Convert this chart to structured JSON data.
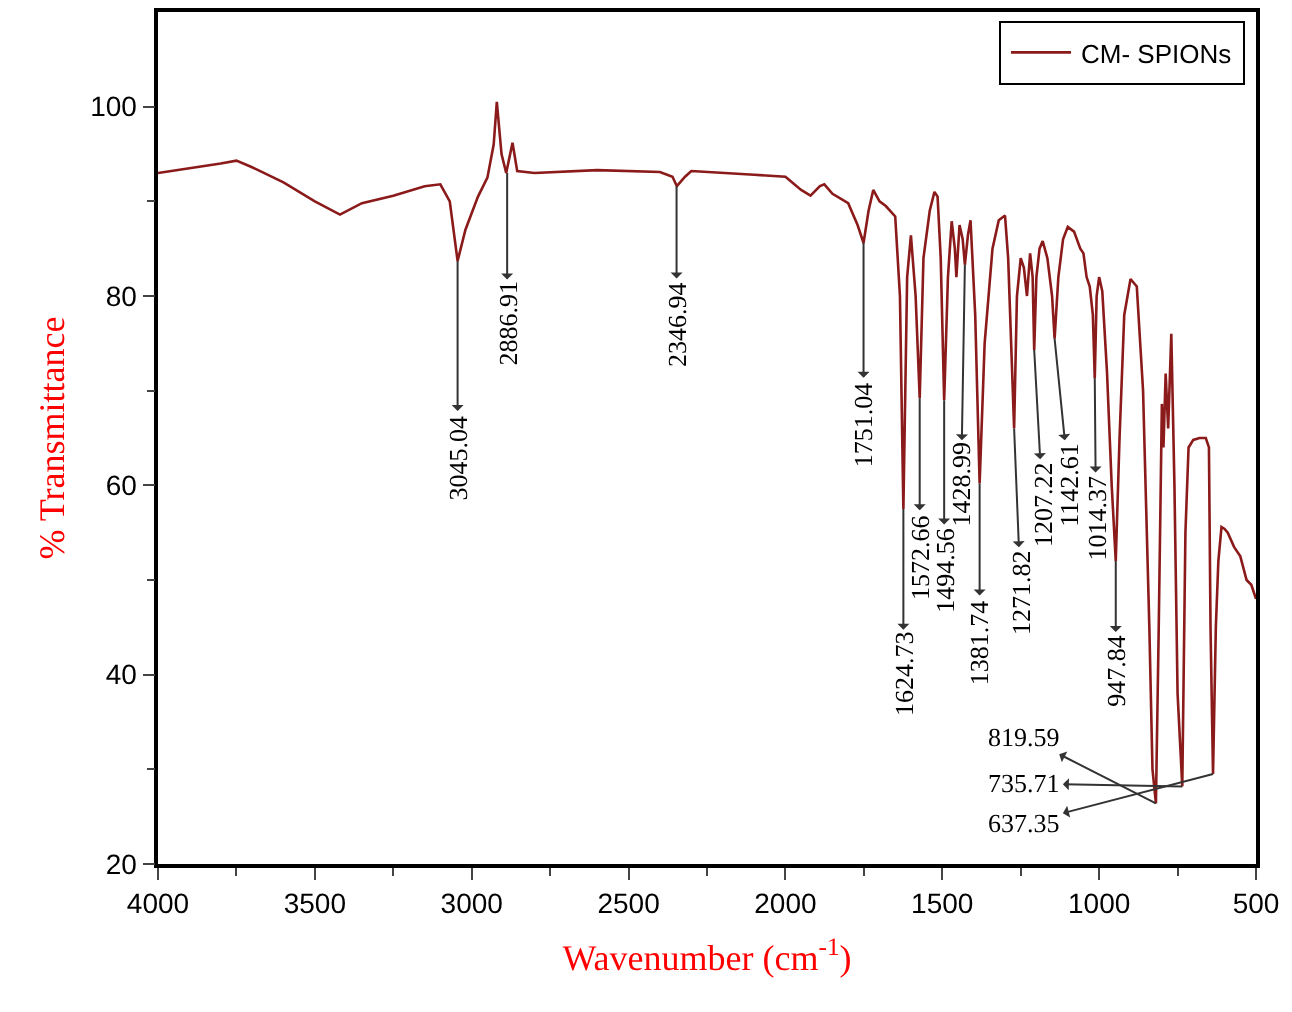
{
  "chart_data": {
    "type": "line",
    "xlabel": "Wavenumber (cm$^{-1}$)",
    "ylabel": "% Transmittance",
    "xlim": [
      4000,
      500
    ],
    "ylim": [
      20,
      110
    ],
    "xticks": [
      4000,
      3500,
      3000,
      2500,
      2000,
      1500,
      1000,
      500
    ],
    "yticks": [
      20,
      40,
      60,
      80,
      100
    ],
    "legend": "top right",
    "marker": "none",
    "line_style": "solid",
    "x": [
      4000,
      3900,
      3800,
      3750,
      3700,
      3600,
      3500,
      3420,
      3350,
      3250,
      3150,
      3100,
      3070,
      3045,
      3020,
      2980,
      2950,
      2930,
      2920,
      2905,
      2890,
      2870,
      2855,
      2800,
      2600,
      2400,
      2360,
      2346,
      2320,
      2300,
      2100,
      2000,
      1950,
      1920,
      1890,
      1876,
      1850,
      1800,
      1770,
      1751,
      1735,
      1720,
      1700,
      1680,
      1650,
      1635,
      1624,
      1612,
      1600,
      1585,
      1572,
      1560,
      1540,
      1525,
      1515,
      1505,
      1494,
      1482,
      1470,
      1460,
      1455,
      1445,
      1435,
      1428,
      1418,
      1410,
      1395,
      1381,
      1365,
      1340,
      1320,
      1300,
      1290,
      1271,
      1262,
      1250,
      1240,
      1230,
      1220,
      1212,
      1207,
      1200,
      1190,
      1180,
      1165,
      1150,
      1142,
      1130,
      1115,
      1100,
      1080,
      1060,
      1050,
      1040,
      1030,
      1020,
      1014,
      1008,
      1000,
      990,
      975,
      960,
      947,
      935,
      920,
      900,
      880,
      860,
      840,
      830,
      819,
      810,
      800,
      795,
      788,
      780,
      770,
      760,
      750,
      735,
      725,
      715,
      700,
      680,
      660,
      650,
      645,
      637,
      628,
      620,
      610,
      600,
      590,
      570,
      550,
      530,
      515,
      500
    ],
    "series": [
      {
        "name": "CM- SPIONs",
        "color": "#8b1a1a",
        "values": [
          93.0,
          93.5,
          94.0,
          94.3,
          93.6,
          92.0,
          90.0,
          88.6,
          89.8,
          90.6,
          91.6,
          91.8,
          90.0,
          83.7,
          87.0,
          90.5,
          92.5,
          96.0,
          100.5,
          95.0,
          93.0,
          96.2,
          93.2,
          93.0,
          93.3,
          93.1,
          92.6,
          91.6,
          92.6,
          93.2,
          92.8,
          92.6,
          91.2,
          90.6,
          91.6,
          91.8,
          90.8,
          89.8,
          87.5,
          85.6,
          89.0,
          91.2,
          90.0,
          89.5,
          88.4,
          80.0,
          57.5,
          82.0,
          86.4,
          80.0,
          69.2,
          84.0,
          89.0,
          91.0,
          90.5,
          84.0,
          69.0,
          82.0,
          87.9,
          85.0,
          82.0,
          87.5,
          86.0,
          83.3,
          86.5,
          88.0,
          78.0,
          60.2,
          75.0,
          85.0,
          88.0,
          88.5,
          84.0,
          66.0,
          80.0,
          84.0,
          83.0,
          80.0,
          84.5,
          82.0,
          74.3,
          82.0,
          85.0,
          85.8,
          84.0,
          80.0,
          75.5,
          82.0,
          86.0,
          87.3,
          86.8,
          85.0,
          84.5,
          82.0,
          81.0,
          78.0,
          71.3,
          80.0,
          82.0,
          80.5,
          72.0,
          60.0,
          52.0,
          65.0,
          78.0,
          81.8,
          81.0,
          70.0,
          45.0,
          30.0,
          26.4,
          45.0,
          68.6,
          64.0,
          71.8,
          66.0,
          76.0,
          60.0,
          38.0,
          28.2,
          55.0,
          64.0,
          64.8,
          65.0,
          65.0,
          64.0,
          45.0,
          29.5,
          45.0,
          52.0,
          55.6,
          55.4,
          55.0,
          53.5,
          52.5,
          50.0,
          49.5,
          48.0
        ]
      }
    ],
    "annotations": [
      {
        "text": "3045.04",
        "x": 3045,
        "y": 83.7
      },
      {
        "text": "2886.91",
        "x": 2887,
        "y": 93.0
      },
      {
        "text": "2346.94",
        "x": 2347,
        "y": 91.6
      },
      {
        "text": "1751.04",
        "x": 1751,
        "y": 85.6
      },
      {
        "text": "1624.73",
        "x": 1624,
        "y": 57.5
      },
      {
        "text": "1572.66",
        "x": 1572,
        "y": 69.2
      },
      {
        "text": "1494.56",
        "x": 1494,
        "y": 69.0
      },
      {
        "text": "1428.99",
        "x": 1428,
        "y": 83.3
      },
      {
        "text": "1381.74",
        "x": 1381,
        "y": 60.2
      },
      {
        "text": "1271.82",
        "x": 1271,
        "y": 66.0
      },
      {
        "text": "1207.22",
        "x": 1207,
        "y": 74.3
      },
      {
        "text": "1142.61",
        "x": 1142,
        "y": 75.5
      },
      {
        "text": "1014.37",
        "x": 1014,
        "y": 71.3
      },
      {
        "text": "947.84",
        "x": 947,
        "y": 52.0
      },
      {
        "text": "819.59",
        "x": 819,
        "y": 26.4
      },
      {
        "text": "735.71",
        "x": 735,
        "y": 28.2
      },
      {
        "text": "637.35",
        "x": 637,
        "y": 29.5
      }
    ]
  }
}
